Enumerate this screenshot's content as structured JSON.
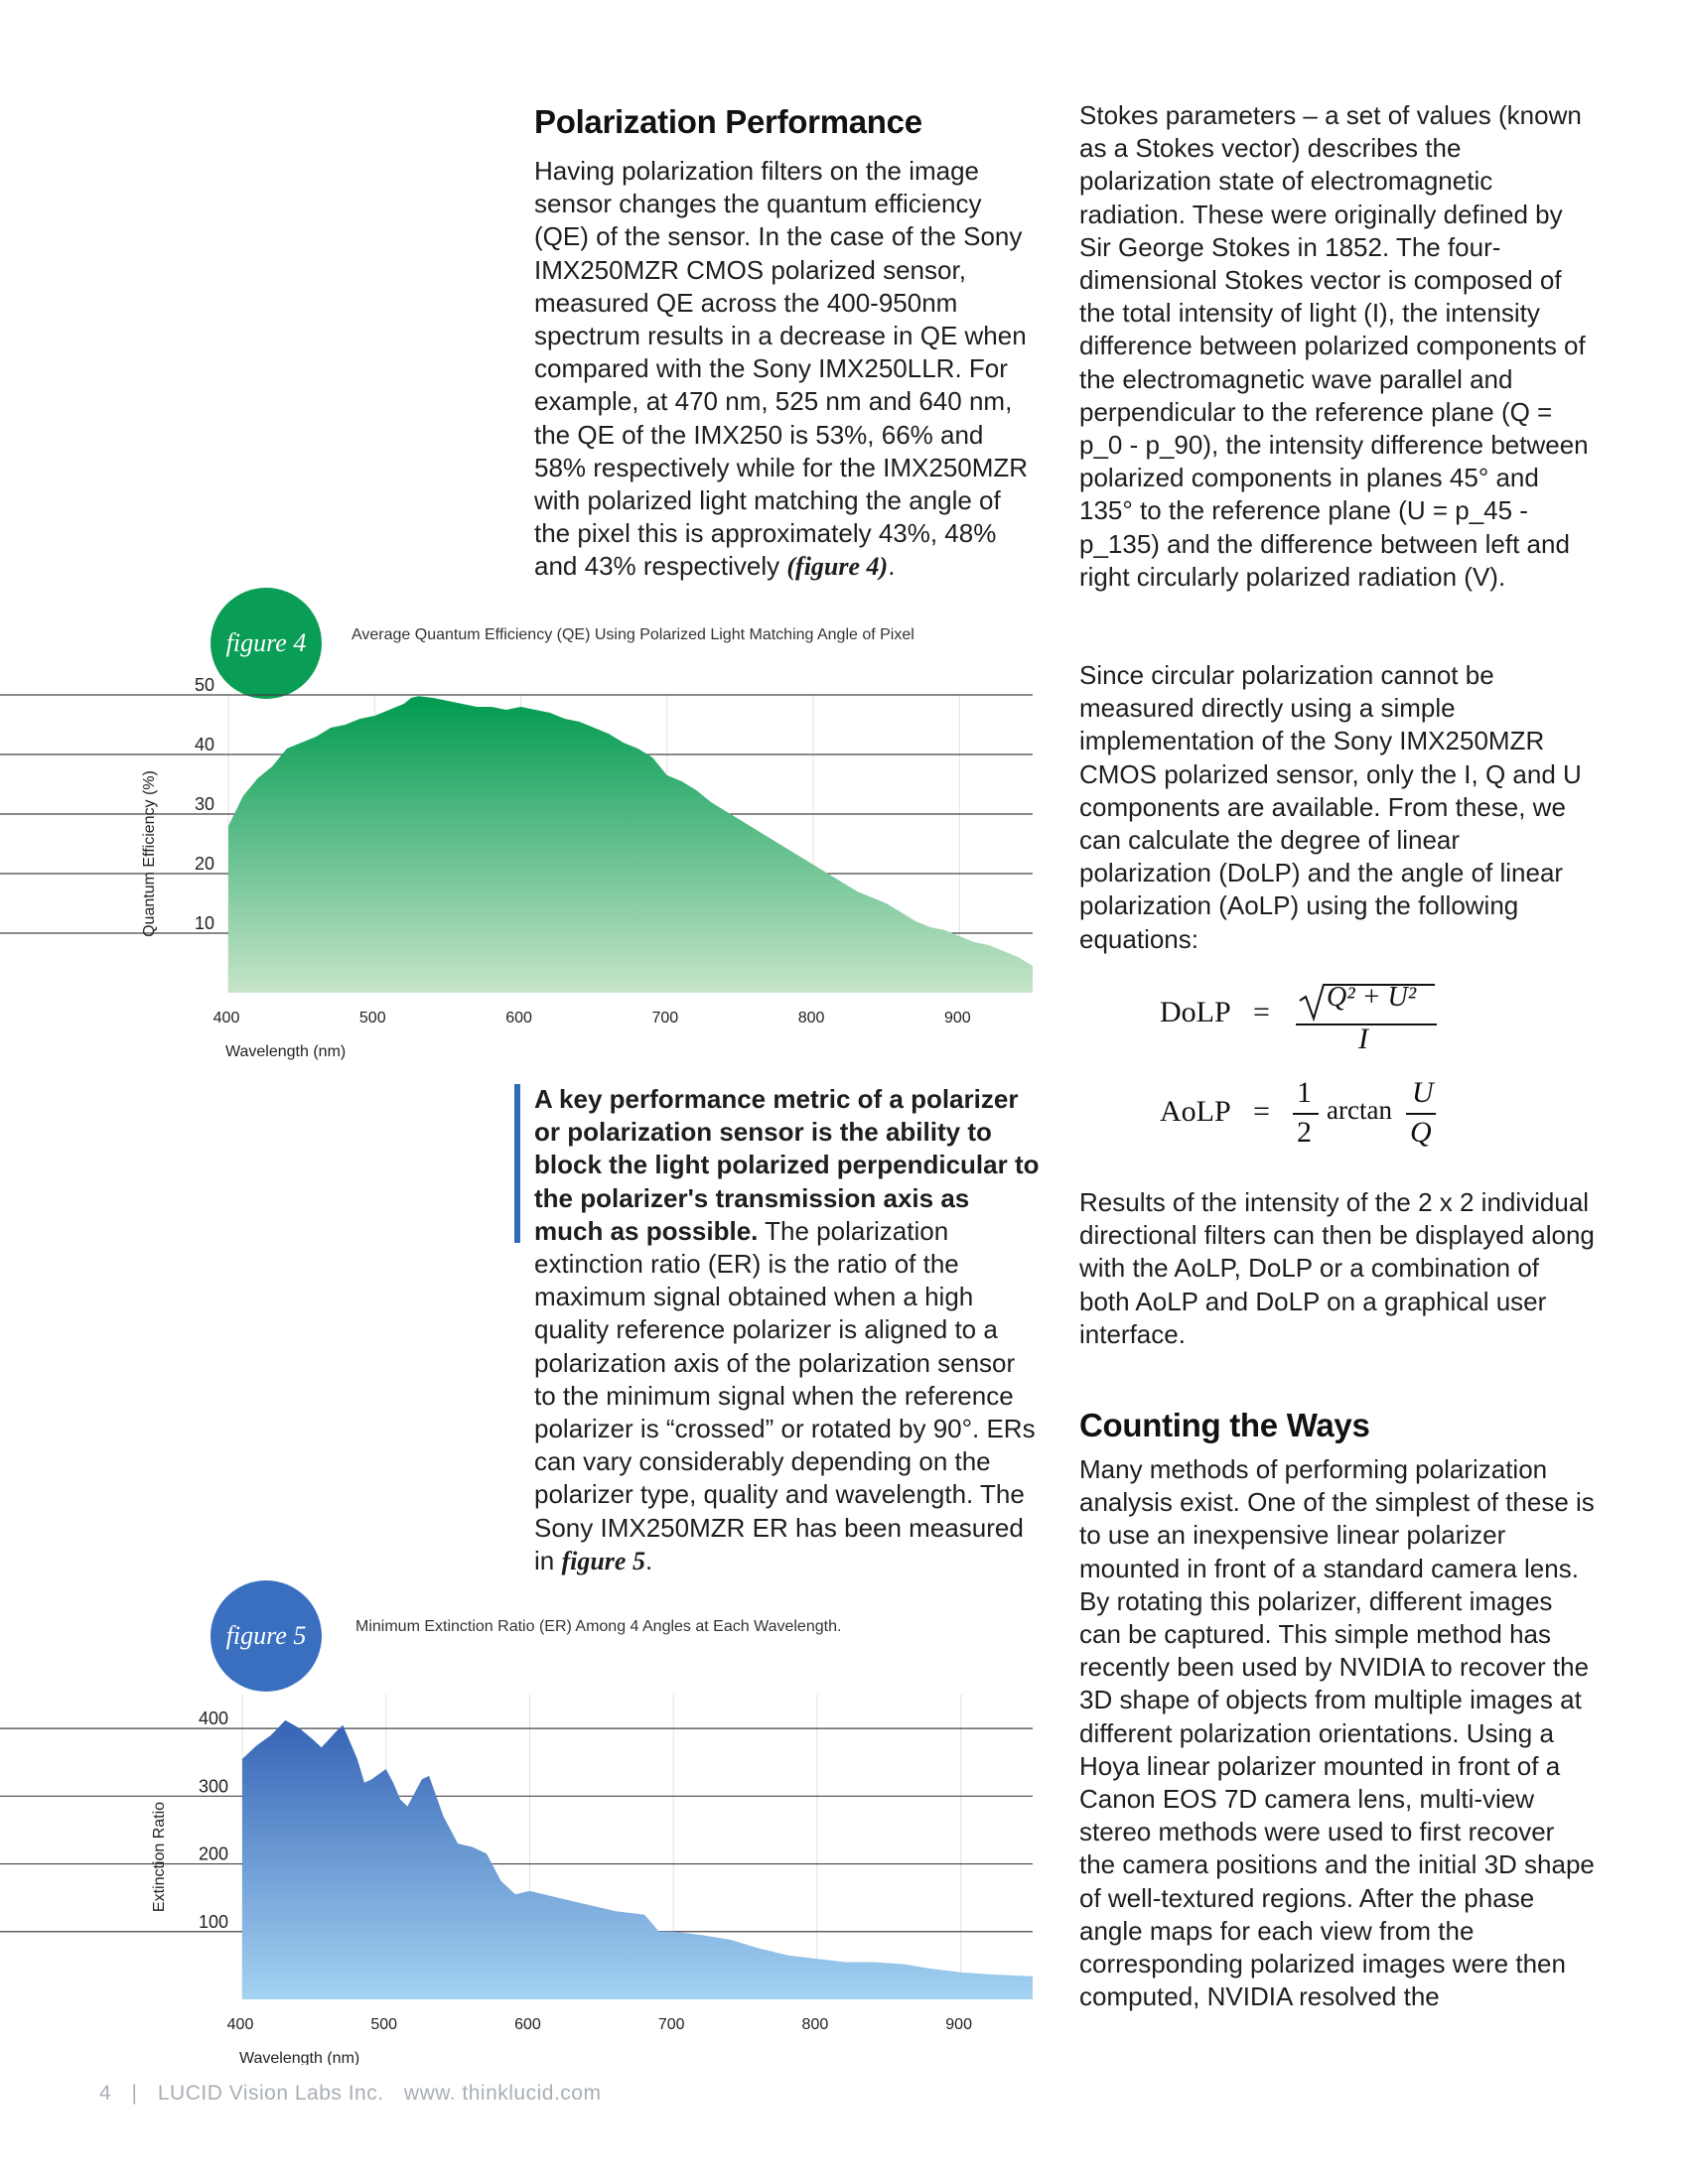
{
  "article": {
    "polarization_heading": "Polarization Performance",
    "polarization_paragraph": "Having polarization filters on the image sensor changes the quantum efficiency (QE) of the sensor. In the case of the Sony IMX250MZR CMOS polarized sensor, measured QE across the 400-950nm spectrum results in a decrease in QE when compared with the Sony IMX250LLR. For example, at 470 nm, 525 nm and 640 nm, the QE of the IMX250 is 53%, 66% and 58% respectively while for the IMX250MZR with polarized light matching the angle of the pixel this is approximately 43%, 48% and 43% respectively ",
    "polarization_ref": "(figure 4)",
    "polarization_end": ".",
    "pullquote_bold": "A key performance metric of a polarizer or polarization sensor is the ability to block the light polarized perpendicular to the polarizer's transmission axis as much as possible.",
    "pullquote_rest": " The polarization extinction ratio (ER) is the ratio of the maximum signal obtained when a high quality reference polarizer is aligned to a polarization axis of the polarization sensor to the minimum signal when the reference polarizer is “crossed” or rotated by 90°. ERs can vary considerably depending on the polarizer type, quality and wavelength. The Sony IMX250MZR ER has been measured in ",
    "pullquote_ref": "figure 5",
    "pullquote_end": ".",
    "stokes_paragraph": "Stokes parameters – a set of values (known as a Stokes vector) describes the polarization state of electromagnetic radiation. These were originally defined by Sir George Stokes in 1852. The four-dimensional Stokes vector is composed of the total intensity of light (I), the intensity difference between polarized components of the electromagnetic wave parallel and perpendicular to the reference plane (Q = p_0 - p_90), the intensity difference between polarized components in planes 45° and 135° to the reference plane (U = p_45 - p_135) and the difference between left and right circularly polarized radiation (V).",
    "circular_paragraph": "Since circular polarization cannot be measured directly using a simple implementation of the Sony IMX250MZR CMOS polarized sensor, only the I, Q and U components are available. From these, we can calculate the degree of linear polarization (DoLP) and the angle of linear polarization (AoLP) using the following equations:",
    "results_paragraph": "Results of the intensity of the 2 x 2 individual directional filters can then be displayed along with the AoLP, DoLP or a combination of both AoLP and DoLP on a graphical user interface.",
    "counting_heading": "Counting the Ways",
    "counting_paragraph": "Many methods of performing polarization analysis exist. One of the simplest of these is to use an inexpensive linear polarizer mounted in front of a standard camera lens. By rotating this polarizer, different images can be captured. This simple method has recently been used by NVIDIA to recover the 3D shape of objects from multiple images at different polarization orientations.  Using a Hoya linear polarizer mounted in front of a Canon EOS 7D camera lens, multi-view stereo methods were used to first recover the camera positions and the initial 3D shape of well-textured regions. After the phase angle maps for each view from the corresponding polarized images were then computed, NVIDIA resolved the"
  },
  "equations": {
    "dolp_label": "DoLP",
    "aolp_label": "AoLP",
    "equals": "=",
    "dolp_numerator": "Q² + U²",
    "dolp_denominator": "I",
    "aolp_coef_num": "1",
    "aolp_coef_den": "2",
    "aolp_func": "arctan",
    "aolp_num": "U",
    "aolp_den": "Q"
  },
  "figures": {
    "fig4_badge": "figure 4",
    "fig4_caption": "Average Quantum Efficiency (QE) Using Polarized Light Matching Angle of Pixel",
    "fig5_badge": "figure 5",
    "fig5_caption": "Minimum Extinction Ratio (ER) Among 4 Angles at Each Wavelength.",
    "fig4_color": "#0a9d56",
    "fig5_color": "#3a6fbf"
  },
  "footer": {
    "page_number": "4",
    "separator": "|",
    "company": "LUCID Vision Labs Inc.",
    "website": "www. thinklucid.com"
  },
  "chart_data": [
    {
      "type": "area",
      "title": "Average Quantum Efficiency (QE) Using Polarized Light Matching Angle of Pixel",
      "xlabel": "Wavelength (nm)",
      "ylabel": "Quantum Efficiency (%)",
      "xlim": [
        400,
        950
      ],
      "ylim": [
        0,
        50
      ],
      "x_ticks": [
        "400",
        "500",
        "600",
        "700",
        "800",
        "900"
      ],
      "y_ticks": [
        "10",
        "20",
        "30",
        "40",
        "50"
      ],
      "grid": true,
      "x": [
        400,
        410,
        420,
        430,
        440,
        450,
        460,
        470,
        480,
        490,
        500,
        510,
        520,
        525,
        530,
        540,
        550,
        560,
        570,
        580,
        590,
        600,
        610,
        620,
        630,
        640,
        650,
        660,
        670,
        680,
        690,
        700,
        710,
        720,
        730,
        740,
        750,
        760,
        770,
        780,
        790,
        800,
        810,
        820,
        830,
        840,
        850,
        860,
        870,
        880,
        890,
        900,
        910,
        920,
        930,
        940,
        950
      ],
      "y": [
        28,
        33,
        36,
        38,
        41,
        42,
        43,
        44.5,
        45,
        46,
        46.5,
        47.5,
        48.5,
        49.5,
        49.8,
        49.5,
        49,
        48.5,
        48,
        48,
        47.5,
        48,
        47.5,
        47,
        46,
        45.5,
        44.5,
        43.5,
        42,
        41,
        39.5,
        36.5,
        35.5,
        34,
        32,
        30.5,
        29,
        27.5,
        26,
        24.5,
        23,
        21.5,
        20,
        18.5,
        17,
        16,
        15,
        13.5,
        12,
        11,
        10.5,
        9.5,
        8.5,
        8,
        7,
        6,
        4.5
      ]
    },
    {
      "type": "area",
      "title": "Minimum Extinction Ratio (ER) Among 4 Angles at Each Wavelength.",
      "xlabel": "Wavelength (nm)",
      "ylabel": "Extinction Ratio",
      "xlim": [
        400,
        950
      ],
      "ylim": [
        0,
        450
      ],
      "x_ticks": [
        "400",
        "500",
        "600",
        "700",
        "800",
        "900"
      ],
      "y_ticks": [
        "100",
        "200",
        "300",
        "400"
      ],
      "grid": true,
      "x": [
        400,
        410,
        420,
        430,
        440,
        450,
        455,
        460,
        465,
        470,
        480,
        485,
        490,
        500,
        505,
        510,
        515,
        520,
        525,
        530,
        540,
        550,
        560,
        570,
        580,
        590,
        600,
        620,
        640,
        660,
        680,
        690,
        700,
        720,
        740,
        760,
        780,
        800,
        820,
        840,
        860,
        880,
        900,
        920,
        940,
        950
      ],
      "y": [
        355,
        375,
        390,
        412,
        400,
        382,
        372,
        383,
        395,
        405,
        355,
        320,
        325,
        340,
        320,
        295,
        285,
        305,
        325,
        330,
        270,
        230,
        225,
        215,
        175,
        155,
        160,
        150,
        140,
        130,
        125,
        100,
        100,
        95,
        88,
        75,
        65,
        60,
        55,
        55,
        52,
        45,
        40,
        37,
        35,
        34
      ]
    }
  ]
}
